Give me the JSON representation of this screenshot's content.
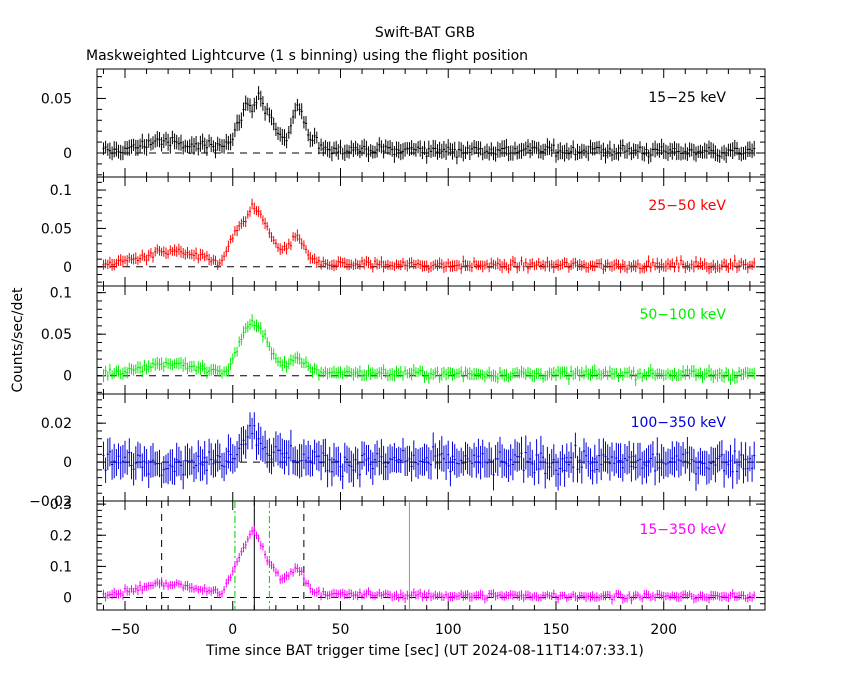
{
  "chart_data": {
    "type": "line",
    "title": "Swift-BAT GRB",
    "subtitle": "Maskweighted Lightcurve (1 s binning) using the flight position",
    "xlabel": "Time since BAT trigger time [sec] (UT 2024-08-11T14:07:33.1)",
    "ylabel": "Counts/sec/det",
    "xlim": [
      -63,
      247
    ],
    "x_ticks": [
      -50,
      0,
      50,
      100,
      150,
      200
    ],
    "x_tick_labels": [
      "−50",
      "0",
      "50",
      "100",
      "150",
      "200"
    ],
    "panels": [
      {
        "band": "15−25 keV",
        "color": "#000000",
        "ylim": [
          -0.022,
          0.077
        ],
        "y_ticks": [
          0,
          0.05
        ],
        "y_tick_labels": [
          "0",
          "0.05"
        ],
        "noise": 0.006,
        "profile": [
          [
            -63,
            0
          ],
          [
            -45,
            0.005
          ],
          [
            -35,
            0.012
          ],
          [
            -20,
            0.006
          ],
          [
            -10,
            0.008
          ],
          [
            -2,
            0.01
          ],
          [
            0,
            0.012
          ],
          [
            3,
            0.03
          ],
          [
            6,
            0.045
          ],
          [
            9,
            0.04
          ],
          [
            12,
            0.055
          ],
          [
            15,
            0.04
          ],
          [
            18,
            0.03
          ],
          [
            22,
            0.015
          ],
          [
            25,
            0.01
          ],
          [
            28,
            0.03
          ],
          [
            30,
            0.045
          ],
          [
            32,
            0.035
          ],
          [
            36,
            0.012
          ],
          [
            45,
            0.004
          ],
          [
            70,
            0.003
          ],
          [
            100,
            0.003
          ],
          [
            247,
            0.001
          ]
        ]
      },
      {
        "band": "25−50 keV",
        "color": "#ff0000",
        "ylim": [
          -0.025,
          0.117
        ],
        "y_ticks": [
          0,
          0.05,
          0.1
        ],
        "y_tick_labels": [
          "0",
          "0.05",
          "0.1"
        ],
        "noise": 0.006,
        "profile": [
          [
            -63,
            0.002
          ],
          [
            -45,
            0.01
          ],
          [
            -35,
            0.018
          ],
          [
            -25,
            0.02
          ],
          [
            -15,
            0.012
          ],
          [
            -5,
            0.005
          ],
          [
            0,
            0.04
          ],
          [
            3,
            0.05
          ],
          [
            6,
            0.06
          ],
          [
            9,
            0.08
          ],
          [
            12,
            0.07
          ],
          [
            15,
            0.055
          ],
          [
            18,
            0.04
          ],
          [
            22,
            0.02
          ],
          [
            26,
            0.025
          ],
          [
            29,
            0.04
          ],
          [
            32,
            0.03
          ],
          [
            36,
            0.01
          ],
          [
            45,
            0.004
          ],
          [
            100,
            0.002
          ],
          [
            247,
            0.002
          ]
        ]
      },
      {
        "band": "50−100 keV",
        "color": "#00ee00",
        "ylim": [
          -0.022,
          0.108
        ],
        "y_ticks": [
          0,
          0.05,
          0.1
        ],
        "y_tick_labels": [
          "0",
          "0.05",
          "0.1"
        ],
        "noise": 0.006,
        "profile": [
          [
            -63,
            0.002
          ],
          [
            -45,
            0.008
          ],
          [
            -35,
            0.015
          ],
          [
            -25,
            0.014
          ],
          [
            -15,
            0.008
          ],
          [
            -3,
            0.004
          ],
          [
            0,
            0.02
          ],
          [
            3,
            0.04
          ],
          [
            6,
            0.055
          ],
          [
            9,
            0.065
          ],
          [
            12,
            0.06
          ],
          [
            15,
            0.045
          ],
          [
            18,
            0.03
          ],
          [
            22,
            0.015
          ],
          [
            26,
            0.014
          ],
          [
            30,
            0.02
          ],
          [
            34,
            0.012
          ],
          [
            40,
            0.004
          ],
          [
            100,
            0.002
          ],
          [
            247,
            0.002
          ]
        ]
      },
      {
        "band": "100−350 keV",
        "color": "#0000dd",
        "ylim": [
          -0.02,
          0.035
        ],
        "y_ticks": [
          0,
          0.02
        ],
        "y_tick_labels": [
          "0",
          "0.02"
        ],
        "noise": 0.007,
        "profile": [
          [
            -63,
            0
          ],
          [
            -10,
            0
          ],
          [
            0,
            0.004
          ],
          [
            5,
            0.012
          ],
          [
            8,
            0.016
          ],
          [
            11,
            0.014
          ],
          [
            15,
            0.008
          ],
          [
            20,
            0.004
          ],
          [
            30,
            0.003
          ],
          [
            45,
            0
          ],
          [
            247,
            0
          ]
        ]
      },
      {
        "band": "15−350 keV",
        "color": "#ff00ff",
        "ylim": [
          -0.04,
          0.31
        ],
        "y_ticks": [
          0,
          0.1,
          0.2,
          0.3
        ],
        "y_tick_labels": [
          "0",
          "0.1",
          "0.2",
          "0.3"
        ],
        "noise": 0.012,
        "profile": [
          [
            -63,
            0.005
          ],
          [
            -45,
            0.025
          ],
          [
            -35,
            0.045
          ],
          [
            -25,
            0.04
          ],
          [
            -15,
            0.025
          ],
          [
            -5,
            0.015
          ],
          [
            0,
            0.08
          ],
          [
            3,
            0.13
          ],
          [
            6,
            0.17
          ],
          [
            9,
            0.22
          ],
          [
            12,
            0.19
          ],
          [
            15,
            0.14
          ],
          [
            18,
            0.1
          ],
          [
            22,
            0.06
          ],
          [
            26,
            0.07
          ],
          [
            29,
            0.1
          ],
          [
            32,
            0.08
          ],
          [
            36,
            0.025
          ],
          [
            45,
            0.01
          ],
          [
            100,
            0.006
          ],
          [
            247,
            0.003
          ]
        ],
        "markers": [
          {
            "x": -33,
            "style": "dashed",
            "color": "#000000"
          },
          {
            "x": 33,
            "style": "dashed",
            "color": "#000000"
          },
          {
            "x": 1,
            "style": "dashdot",
            "color": "#00cc00"
          },
          {
            "x": 17,
            "style": "dashdot",
            "color": "#00cc00"
          },
          {
            "x": 10,
            "style": "solid",
            "color": "#000000"
          },
          {
            "x": 82,
            "style": "solid",
            "color": "#ff8000"
          }
        ]
      }
    ],
    "overlap_tick_label": "−0.02"
  }
}
